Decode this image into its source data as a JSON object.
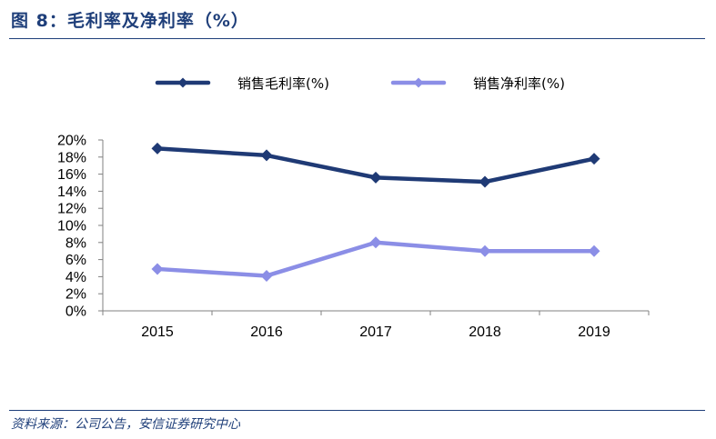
{
  "figure": {
    "title": "图 8：毛利率及净利率（%）",
    "source": "资料来源：公司公告，安信证券研究中心"
  },
  "chart_data": {
    "type": "line",
    "categories": [
      "2015",
      "2016",
      "2017",
      "2018",
      "2019"
    ],
    "series": [
      {
        "name": "销售毛利率(%)",
        "color": "#1f3a75",
        "values": [
          0.19,
          0.182,
          0.156,
          0.151,
          0.178
        ]
      },
      {
        "name": "销售净利率(%)",
        "color": "#8b8ee6",
        "values": [
          0.049,
          0.041,
          0.08,
          0.07,
          0.07
        ]
      }
    ],
    "y_ticks": [
      "0%",
      "2%",
      "4%",
      "6%",
      "8%",
      "10%",
      "12%",
      "14%",
      "16%",
      "18%",
      "20%"
    ],
    "ylim": [
      0,
      0.2
    ],
    "legend_position": "top",
    "grid": false
  }
}
